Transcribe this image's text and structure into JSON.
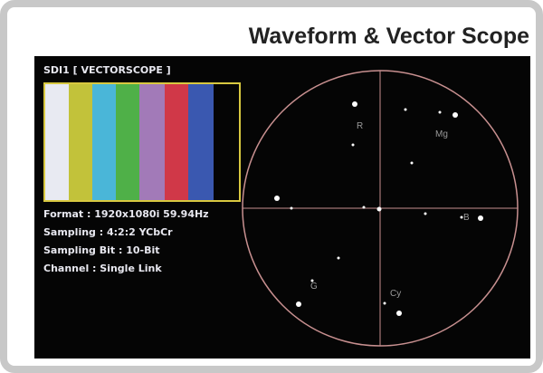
{
  "header": {
    "title": "Waveform & Vector Scope"
  },
  "screen": {
    "heading": "SDI1 [ VECTORSCOPE ]",
    "info": [
      "Format : 1920x1080i  59.94Hz",
      "Sampling : 4:2:2 YCbCr",
      "Sampling Bit : 10-Bit",
      "Channel : Single Link"
    ]
  },
  "scope": {
    "labels": [
      "R",
      "Mg",
      "B",
      "G",
      "Cy"
    ]
  }
}
